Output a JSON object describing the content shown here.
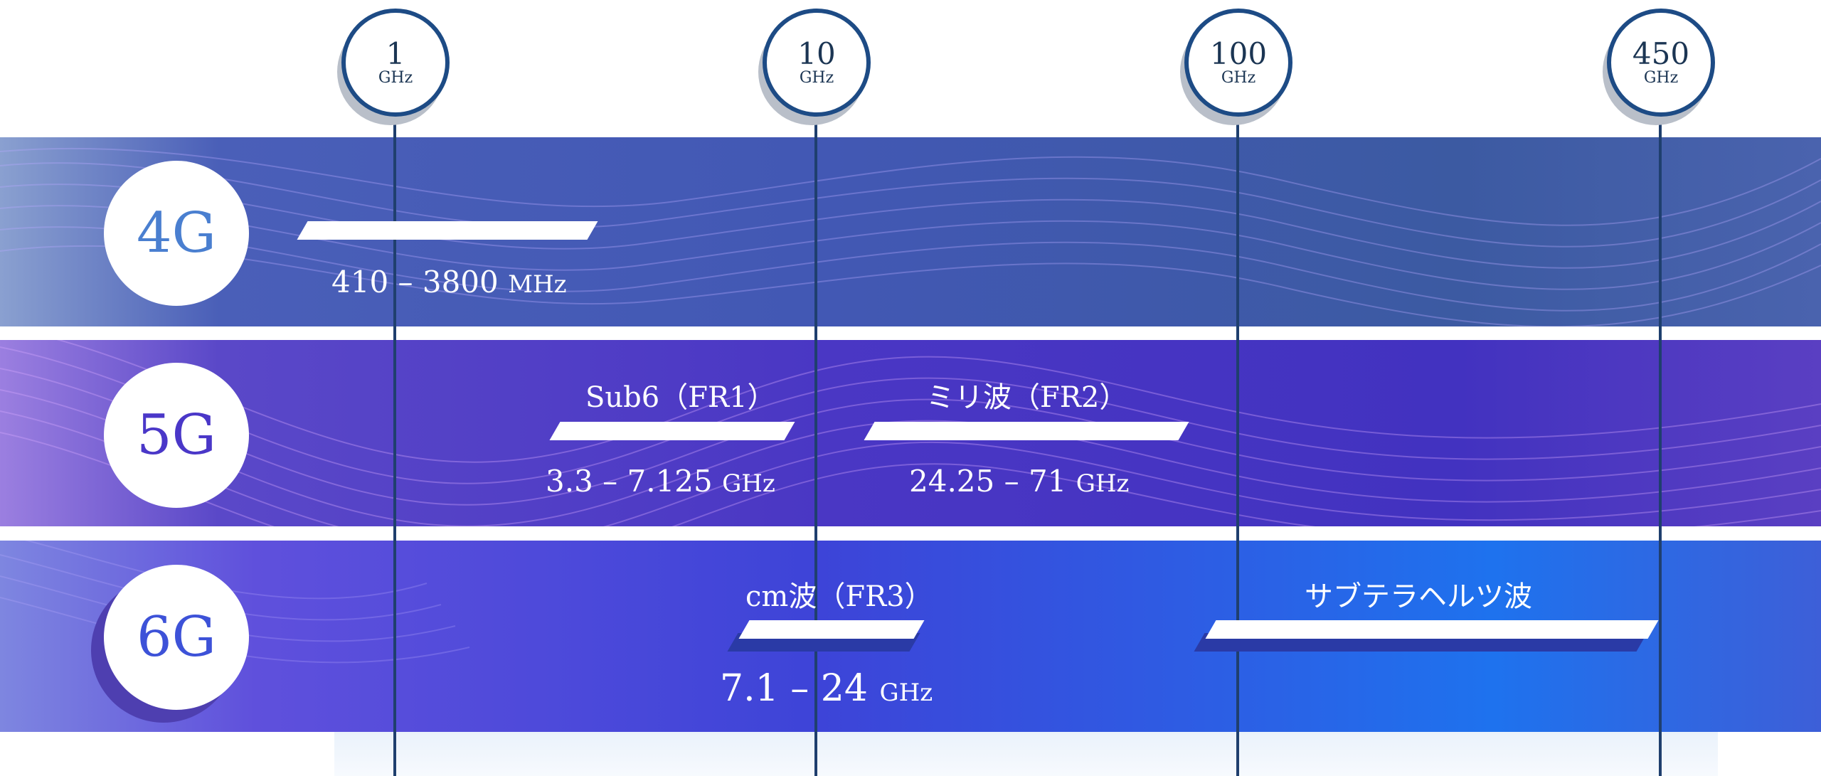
{
  "frequency_markers": [
    {
      "value": "1",
      "unit": "GHz"
    },
    {
      "value": "10",
      "unit": "GHz"
    },
    {
      "value": "100",
      "unit": "GHz"
    },
    {
      "value": "450",
      "unit": "GHz"
    }
  ],
  "generations": {
    "g4": {
      "label": "4G",
      "bands": [
        {
          "range": "410 – 3800",
          "unit": "MHz"
        }
      ]
    },
    "g5": {
      "label": "5G",
      "bands": [
        {
          "name": "Sub6（FR1）",
          "range": "3.3 – 7.125",
          "unit": "GHz"
        },
        {
          "name": "ミリ波（FR2）",
          "range": "24.25 – 71",
          "unit": "GHz"
        }
      ]
    },
    "g6": {
      "label": "6G",
      "bands": [
        {
          "name": "cm波（FR3）",
          "range": "7.1 – 24",
          "unit": "GHz"
        },
        {
          "name": "サブテラヘルツ波"
        }
      ]
    }
  },
  "colors": {
    "marker_ring": "#1d4b85",
    "axis_line": "#1f3f6e",
    "g4_text": "#4a7fd0",
    "g5_text": "#4a37c8",
    "g6_text": "#3d52d8"
  }
}
